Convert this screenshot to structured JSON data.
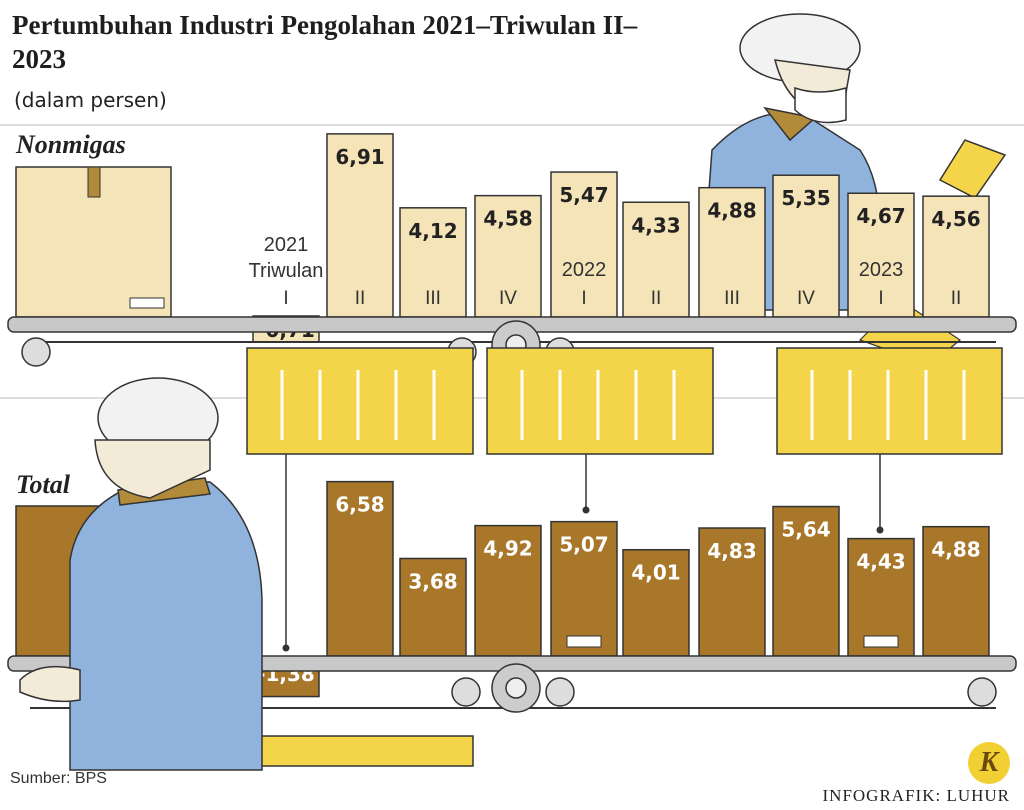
{
  "title": "Pertumbuhan Industri Pengolahan 2021–Triwulan II–2023",
  "subtitle": "(dalam persen)",
  "source": "Sumber: BPS",
  "credit": "INFOGRAFIK: LUHUR",
  "logo_letter": "K",
  "colors": {
    "nonmigas_bar": "#f5e4b8",
    "total_bar": "#a8772a",
    "belt": "#c8c8c8",
    "crate": "#f4d54a",
    "worker_coat": "#8fb3dd"
  },
  "chart_data": [
    {
      "type": "bar",
      "title": "Nonmigas",
      "categories": [
        "2021 Triwulan I",
        "II",
        "III",
        "IV",
        "2022 I",
        "II",
        "III",
        "IV",
        "2023 I",
        "II"
      ],
      "category_labels": [
        {
          "year": "2021",
          "sub": "Triwulan",
          "q": "I"
        },
        {
          "year": "",
          "sub": "",
          "q": "II"
        },
        {
          "year": "",
          "sub": "",
          "q": "III"
        },
        {
          "year": "",
          "sub": "",
          "q": "IV"
        },
        {
          "year": "2022",
          "sub": "",
          "q": "I"
        },
        {
          "year": "",
          "sub": "",
          "q": "II"
        },
        {
          "year": "",
          "sub": "",
          "q": "III"
        },
        {
          "year": "",
          "sub": "",
          "q": "IV"
        },
        {
          "year": "2023",
          "sub": "",
          "q": "I"
        },
        {
          "year": "",
          "sub": "",
          "q": "II"
        }
      ],
      "values": [
        -0.71,
        6.91,
        4.12,
        4.58,
        5.47,
        4.33,
        4.88,
        5.35,
        4.67,
        4.56
      ],
      "value_labels": [
        "-0,71",
        "6,91",
        "4,12",
        "4,58",
        "5,47",
        "4,33",
        "4,88",
        "5,35",
        "4,67",
        "4,56"
      ]
    },
    {
      "type": "bar",
      "title": "Total",
      "categories": [
        "2021 Triwulan I",
        "II",
        "III",
        "IV",
        "2022 I",
        "II",
        "III",
        "IV",
        "2023 I",
        "II"
      ],
      "values": [
        -1.38,
        6.58,
        3.68,
        4.92,
        5.07,
        4.01,
        4.83,
        5.64,
        4.43,
        4.88
      ],
      "value_labels": [
        "-1,38",
        "6,58",
        "3,68",
        "4,92",
        "5,07",
        "4,01",
        "4,83",
        "5,64",
        "4,43",
        "4,88"
      ]
    }
  ]
}
